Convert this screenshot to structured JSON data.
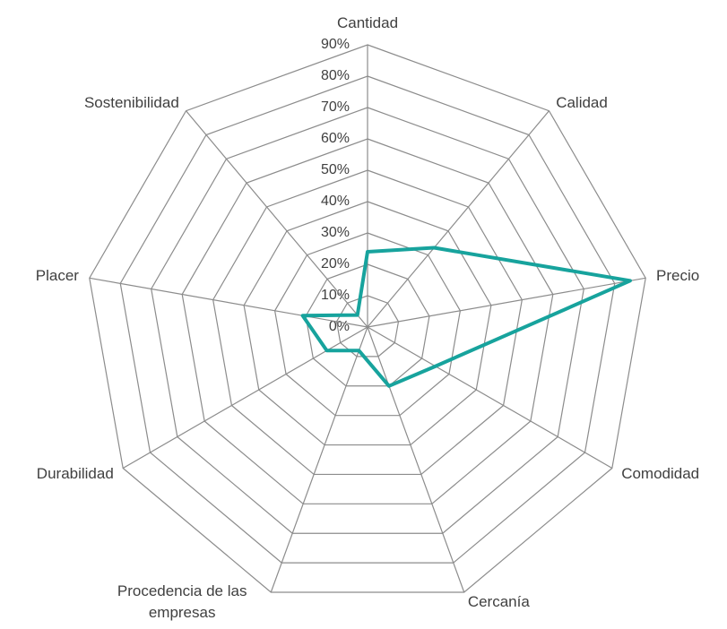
{
  "chart_data": {
    "type": "radar",
    "categories": [
      "Cantidad",
      "Calidad",
      "Precio",
      "Comodidad",
      "Cercanía",
      "Procedencia de las empresas",
      "Durabilidad",
      "Placer",
      "Sostenibilidad"
    ],
    "values": [
      24,
      33,
      85,
      25,
      20,
      8,
      15,
      21,
      5
    ],
    "color": "#17a39d",
    "ylim": [
      0,
      90
    ],
    "yticks": [
      {
        "value": 0,
        "label": "0%"
      },
      {
        "value": 10,
        "label": "10%"
      },
      {
        "value": 20,
        "label": "20%"
      },
      {
        "value": 30,
        "label": "30%"
      },
      {
        "value": 40,
        "label": "40%"
      },
      {
        "value": 50,
        "label": "50%"
      },
      {
        "value": 60,
        "label": "60%"
      },
      {
        "value": 70,
        "label": "70%"
      },
      {
        "value": 80,
        "label": "80%"
      },
      {
        "value": 90,
        "label": "90%"
      }
    ],
    "grid": true
  }
}
